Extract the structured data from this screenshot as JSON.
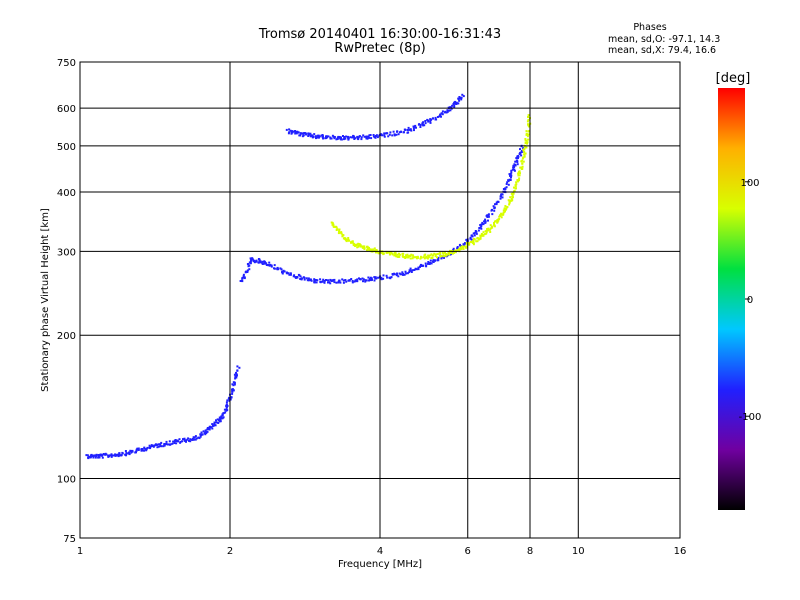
{
  "chart_data": {
    "type": "scatter",
    "title": "Tromsø 20140401 16:30:00-16:31:43",
    "subtitle": "RwPretec (8p)",
    "xlabel": "Frequency [MHz]",
    "ylabel": "Stationary phase Virtual Height [km]",
    "x_scale": "log",
    "y_scale": "log",
    "xlim": [
      1,
      16
    ],
    "ylim": [
      75,
      750
    ],
    "x_ticks": [
      1,
      2,
      4,
      6,
      8,
      10,
      16
    ],
    "y_ticks": [
      75,
      100,
      200,
      300,
      400,
      500,
      600,
      750
    ],
    "grid": true,
    "colorbar": {
      "label": "[deg]",
      "range": [
        -180,
        180
      ],
      "ticks": [
        100,
        0,
        -100
      ],
      "colors": [
        "#000000",
        "#7000a0",
        "#2020ff",
        "#00c8ff",
        "#00e040",
        "#d8ff00",
        "#ffb000",
        "#ff0000"
      ]
    },
    "annotation": {
      "title": "Phases",
      "line1": "mean, sd,O: -97.1, 14.3",
      "line2": "mean, sd,X:  79.4, 16.6"
    },
    "series": [
      {
        "name": "O-mode trace (low-frequency E/F1 region)",
        "phase_deg": -100,
        "x": [
          1.03,
          1.1,
          1.2,
          1.3,
          1.42,
          1.55,
          1.7,
          1.82,
          1.92,
          2.0,
          2.07
        ],
        "y": [
          112,
          112,
          113,
          115,
          118,
          120,
          122,
          128,
          135,
          150,
          172
        ]
      },
      {
        "name": "O-mode F2 trace",
        "phase_deg": -100,
        "x": [
          2.1,
          2.2,
          2.35,
          2.6,
          2.9,
          3.2,
          3.6,
          4.0,
          4.5,
          5.0,
          5.5,
          6.0,
          6.5,
          7.0,
          7.4,
          7.7
        ],
        "y": [
          260,
          290,
          285,
          270,
          262,
          260,
          262,
          265,
          272,
          285,
          298,
          318,
          350,
          395,
          450,
          500
        ]
      },
      {
        "name": "O-mode multiple-hop trace",
        "phase_deg": -100,
        "x": [
          2.6,
          2.8,
          3.0,
          3.3,
          3.6,
          4.0,
          4.5,
          5.0,
          5.5,
          5.85
        ],
        "y": [
          540,
          530,
          525,
          522,
          522,
          527,
          540,
          565,
          600,
          640
        ]
      },
      {
        "name": "X-mode F2 trace",
        "phase_deg": 80,
        "x": [
          3.2,
          3.4,
          3.6,
          3.8,
          4.0,
          4.3,
          4.6,
          5.0,
          5.4,
          5.8,
          6.2,
          6.6,
          7.0,
          7.3,
          7.6,
          7.8,
          7.95
        ],
        "y": [
          345,
          320,
          310,
          305,
          300,
          296,
          294,
          294,
          298,
          305,
          318,
          335,
          360,
          390,
          440,
          500,
          580
        ]
      }
    ]
  }
}
